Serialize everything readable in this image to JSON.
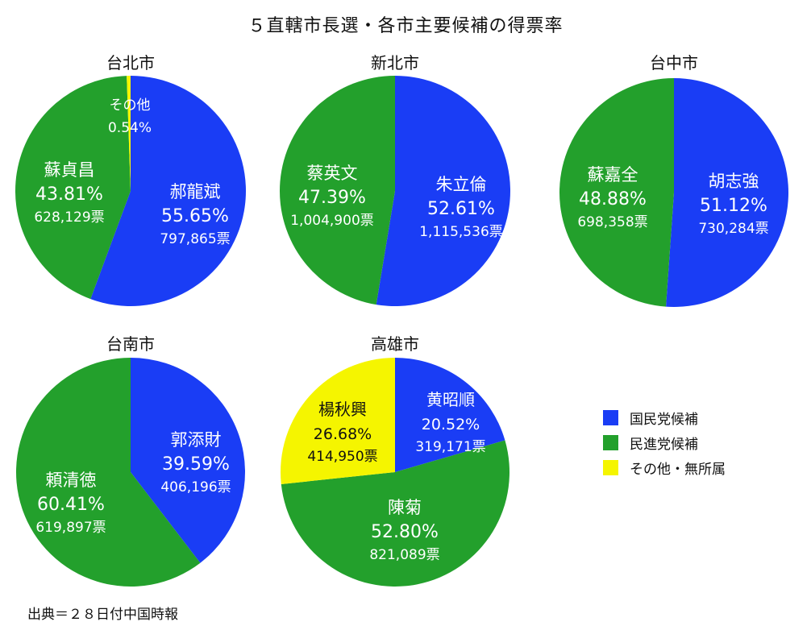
{
  "title": "５直轄市長選・各市主要候補の得票率",
  "source": "出典＝２８日付中国時報",
  "colors": {
    "kmt": "#1a3df5",
    "dpp": "#23a02c",
    "other": "#f5f500"
  },
  "legend": [
    {
      "label": "国民党候補",
      "party": "kmt"
    },
    {
      "label": "民進党候補",
      "party": "dpp"
    },
    {
      "label": "その他・無所属",
      "party": "other"
    }
  ],
  "chart_data": [
    {
      "type": "pie",
      "title": "台北市",
      "slices": [
        {
          "name": "郝龍斌",
          "party": "kmt",
          "percent": 55.65,
          "percent_label": "55.65%",
          "votes_label": "797,865票"
        },
        {
          "name": "蘇貞昌",
          "party": "dpp",
          "percent": 43.81,
          "percent_label": "43.81%",
          "votes_label": "628,129票"
        },
        {
          "name": "その他",
          "party": "other",
          "percent": 0.54,
          "percent_label": "0.54%",
          "votes_label": ""
        }
      ]
    },
    {
      "type": "pie",
      "title": "新北市",
      "slices": [
        {
          "name": "朱立倫",
          "party": "kmt",
          "percent": 52.61,
          "percent_label": "52.61%",
          "votes_label": "1,115,536票"
        },
        {
          "name": "蔡英文",
          "party": "dpp",
          "percent": 47.39,
          "percent_label": "47.39%",
          "votes_label": "1,004,900票"
        }
      ]
    },
    {
      "type": "pie",
      "title": "台中市",
      "slices": [
        {
          "name": "胡志強",
          "party": "kmt",
          "percent": 51.12,
          "percent_label": "51.12%",
          "votes_label": "730,284票"
        },
        {
          "name": "蘇嘉全",
          "party": "dpp",
          "percent": 48.88,
          "percent_label": "48.88%",
          "votes_label": "698,358票"
        }
      ]
    },
    {
      "type": "pie",
      "title": "台南市",
      "slices": [
        {
          "name": "郭添財",
          "party": "kmt",
          "percent": 39.59,
          "percent_label": "39.59%",
          "votes_label": "406,196票"
        },
        {
          "name": "頼清徳",
          "party": "dpp",
          "percent": 60.41,
          "percent_label": "60.41%",
          "votes_label": "619,897票"
        }
      ]
    },
    {
      "type": "pie",
      "title": "高雄市",
      "slices": [
        {
          "name": "黄昭順",
          "party": "kmt",
          "percent": 20.52,
          "percent_label": "20.52%",
          "votes_label": "319,171票"
        },
        {
          "name": "陳菊",
          "party": "dpp",
          "percent": 52.8,
          "percent_label": "52.80%",
          "votes_label": "821,089票"
        },
        {
          "name": "楊秋興",
          "party": "other",
          "percent": 26.68,
          "percent_label": "26.68%",
          "votes_label": "414,950票"
        }
      ]
    }
  ]
}
